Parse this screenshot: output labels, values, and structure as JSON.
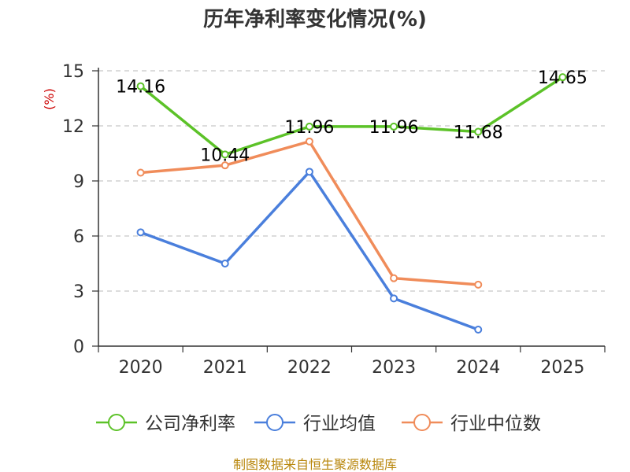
{
  "chart_data": {
    "type": "line",
    "title": "历年净利率变化情况(%)",
    "ylabel": "(%)",
    "xlabel": "",
    "categories": [
      "2020",
      "2021",
      "2022",
      "2023",
      "2024",
      "2025"
    ],
    "ylim": [
      0,
      15
    ],
    "yticks": [
      0,
      3,
      6,
      9,
      12,
      15
    ],
    "grid": true,
    "legend_position": "bottom",
    "series": [
      {
        "name": "公司净利率",
        "color": "#5cc228",
        "values": [
          14.16,
          10.44,
          11.96,
          11.96,
          11.68,
          14.65
        ],
        "labels": [
          "14.16",
          "10.44",
          "11.96",
          "11.96",
          "11.68",
          "14.65"
        ]
      },
      {
        "name": "行业均值",
        "color": "#4a7fdc",
        "values": [
          6.2,
          4.5,
          9.5,
          2.6,
          0.9,
          null
        ]
      },
      {
        "name": "行业中位数",
        "color": "#f08c5a",
        "values": [
          9.45,
          9.85,
          11.15,
          3.7,
          3.35,
          null
        ]
      }
    ],
    "source": "制图数据来自恒生聚源数据库"
  }
}
